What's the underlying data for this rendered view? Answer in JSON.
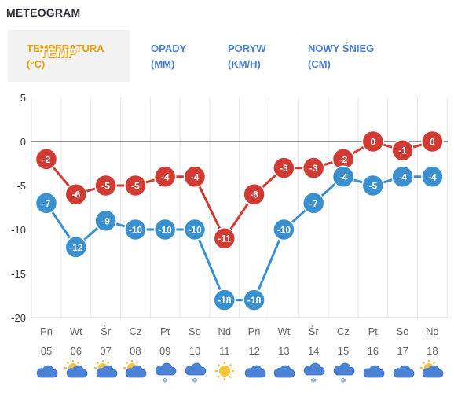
{
  "title": "METEOGRAM",
  "tabs": [
    {
      "label_line1": "TEMPERATURA",
      "label_line2": "(°C)",
      "overlay": "TEMP",
      "active": true
    },
    {
      "label_line1": "OPADY",
      "label_line2": "(MM)",
      "active": false
    },
    {
      "label_line1": "PORYW",
      "label_line2": "(KM/H)",
      "active": false
    },
    {
      "label_line1": "NOWY ŚNIEG",
      "label_line2": "(CM)",
      "active": false
    }
  ],
  "chart_data": {
    "type": "line",
    "categories": [
      {
        "day": "Pn",
        "date": "05"
      },
      {
        "day": "Wt",
        "date": "06"
      },
      {
        "day": "Śr",
        "date": "07"
      },
      {
        "day": "Cz",
        "date": "08"
      },
      {
        "day": "Pt",
        "date": "09"
      },
      {
        "day": "So",
        "date": "10"
      },
      {
        "day": "Nd",
        "date": "11"
      },
      {
        "day": "Pn",
        "date": "12"
      },
      {
        "day": "Wt",
        "date": "13"
      },
      {
        "day": "Śr",
        "date": "14"
      },
      {
        "day": "Cz",
        "date": "15"
      },
      {
        "day": "Pt",
        "date": "16"
      },
      {
        "day": "So",
        "date": "17"
      },
      {
        "day": "Nd",
        "date": "18"
      }
    ],
    "series": [
      {
        "color": "#d23a34",
        "values": [
          -2,
          -6,
          -5,
          -5,
          -4,
          -4,
          -11,
          -6,
          -3,
          -3,
          -2,
          0,
          -1,
          0
        ]
      },
      {
        "color": "#3a90cf",
        "values": [
          -7,
          -12,
          -9,
          -10,
          -10,
          -10,
          -18,
          -18,
          -10,
          -7,
          -4,
          -5,
          -4,
          -4
        ]
      }
    ],
    "ylim": [
      -20,
      5
    ],
    "yticks": [
      5,
      0,
      -5,
      -10,
      -15,
      -20
    ],
    "grid": true,
    "xlabel": "",
    "ylabel": "",
    "title": ""
  },
  "weather_icons": [
    "cloud-icon",
    "sun-cloud-icon",
    "sun-cloud-icon",
    "sun-cloud-icon",
    "cloud-snow-icon",
    "cloud-snow-icon",
    "sun-icon",
    "cloud-icon",
    "cloud-icon",
    "cloud-snow-icon",
    "cloud-snow-icon",
    "cloud-icon",
    "cloud-icon",
    "sun-cloud-icon"
  ],
  "colors": {
    "accent_orange": "#f0a000",
    "tab_blue": "#4a7fd9",
    "high": "#d23a34",
    "low": "#3a90cf"
  }
}
